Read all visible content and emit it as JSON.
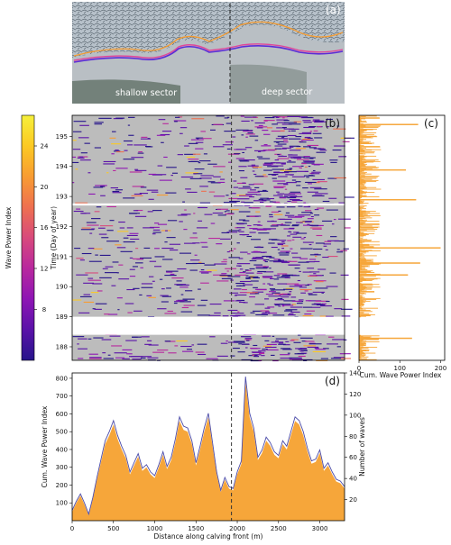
{
  "panel_labels": {
    "a": "(a)",
    "b": "(b)",
    "c": "(c)",
    "d": "(d)"
  },
  "image_panel": {
    "left_sector": "shallow sector",
    "right_sector": "deep sector",
    "colors": {
      "front_1": "#f39c34",
      "front_2": "#5b2bd6",
      "front_3": "#e0459a"
    }
  },
  "colorbar": {
    "label": "Wave Power Index",
    "ticks": [
      8,
      12,
      16,
      20,
      24
    ],
    "range": [
      3,
      27
    ],
    "colormap": [
      "#26148a",
      "#5a12a8",
      "#8e15b4",
      "#b8289e",
      "#d84a7c",
      "#ee7050",
      "#f89c32",
      "#fcc923",
      "#f6f03b"
    ]
  },
  "chart_data": [
    {
      "id": "b",
      "type": "heatmap",
      "ylabel": "Time (Day of year)",
      "y_ticks": [
        188,
        189,
        190,
        191,
        192,
        193,
        194,
        195
      ],
      "ylim": [
        187.55,
        195.7
      ],
      "xlim": [
        0,
        3300
      ],
      "background": "#bcbcbc",
      "data_gaps": [
        [
          188.4,
          189.0
        ],
        [
          192.7,
          192.77
        ]
      ],
      "divider_x": 1930,
      "note_colors": "segments colored by Wave Power Index"
    },
    {
      "id": "c",
      "type": "bar",
      "xlabel": "Cum. Wave Power Index",
      "x_ticks": [
        0,
        100,
        200
      ],
      "xlim": [
        0,
        210
      ],
      "color": "#f6a63a",
      "peaks": [
        {
          "day": 195.4,
          "value": 145
        },
        {
          "day": 193.9,
          "value": 115
        },
        {
          "day": 192.9,
          "value": 140
        },
        {
          "day": 191.3,
          "value": 200
        },
        {
          "day": 190.8,
          "value": 150
        },
        {
          "day": 190.4,
          "value": 120
        },
        {
          "day": 188.3,
          "value": 130
        }
      ]
    },
    {
      "id": "d",
      "type": "area",
      "xlabel": "Distance along calving front (m)",
      "ylabel": "Cum. Wave Power Index",
      "ylabel_right": "Number of waves",
      "x_ticks": [
        0,
        500,
        1000,
        1500,
        2000,
        2500,
        3000
      ],
      "y_ticks": [
        100,
        200,
        300,
        400,
        500,
        600,
        700,
        800
      ],
      "y_ticks_right": [
        20,
        40,
        60,
        80,
        100,
        120,
        140
      ],
      "xlim": [
        0,
        3300
      ],
      "ylim": [
        0,
        830
      ],
      "ylim_right": [
        0,
        140
      ],
      "divider_x": 1930,
      "fill_color": "#f6a63a",
      "line_color": "#4a4aa8",
      "x": [
        0,
        50,
        100,
        150,
        200,
        250,
        300,
        350,
        400,
        450,
        500,
        550,
        600,
        650,
        700,
        750,
        800,
        850,
        900,
        950,
        1000,
        1050,
        1100,
        1150,
        1200,
        1250,
        1300,
        1350,
        1400,
        1450,
        1500,
        1550,
        1600,
        1650,
        1700,
        1750,
        1800,
        1850,
        1900,
        1950,
        2000,
        2050,
        2100,
        2150,
        2200,
        2250,
        2300,
        2350,
        2400,
        2450,
        2500,
        2550,
        2600,
        2650,
        2700,
        2750,
        2800,
        2850,
        2900,
        2950,
        3000,
        3050,
        3100,
        3150,
        3200,
        3250,
        3300
      ],
      "values": [
        50,
        100,
        140,
        90,
        30,
        120,
        230,
        330,
        430,
        480,
        540,
        460,
        400,
        350,
        260,
        310,
        360,
        280,
        300,
        260,
        240,
        300,
        370,
        290,
        340,
        440,
        560,
        510,
        500,
        430,
        310,
        400,
        500,
        580,
        420,
        260,
        160,
        230,
        180,
        170,
        260,
        320,
        780,
        580,
        500,
        340,
        380,
        450,
        420,
        370,
        350,
        430,
        400,
        480,
        560,
        540,
        480,
        390,
        320,
        330,
        380,
        280,
        310,
        260,
        220,
        210,
        180
      ]
    }
  ]
}
